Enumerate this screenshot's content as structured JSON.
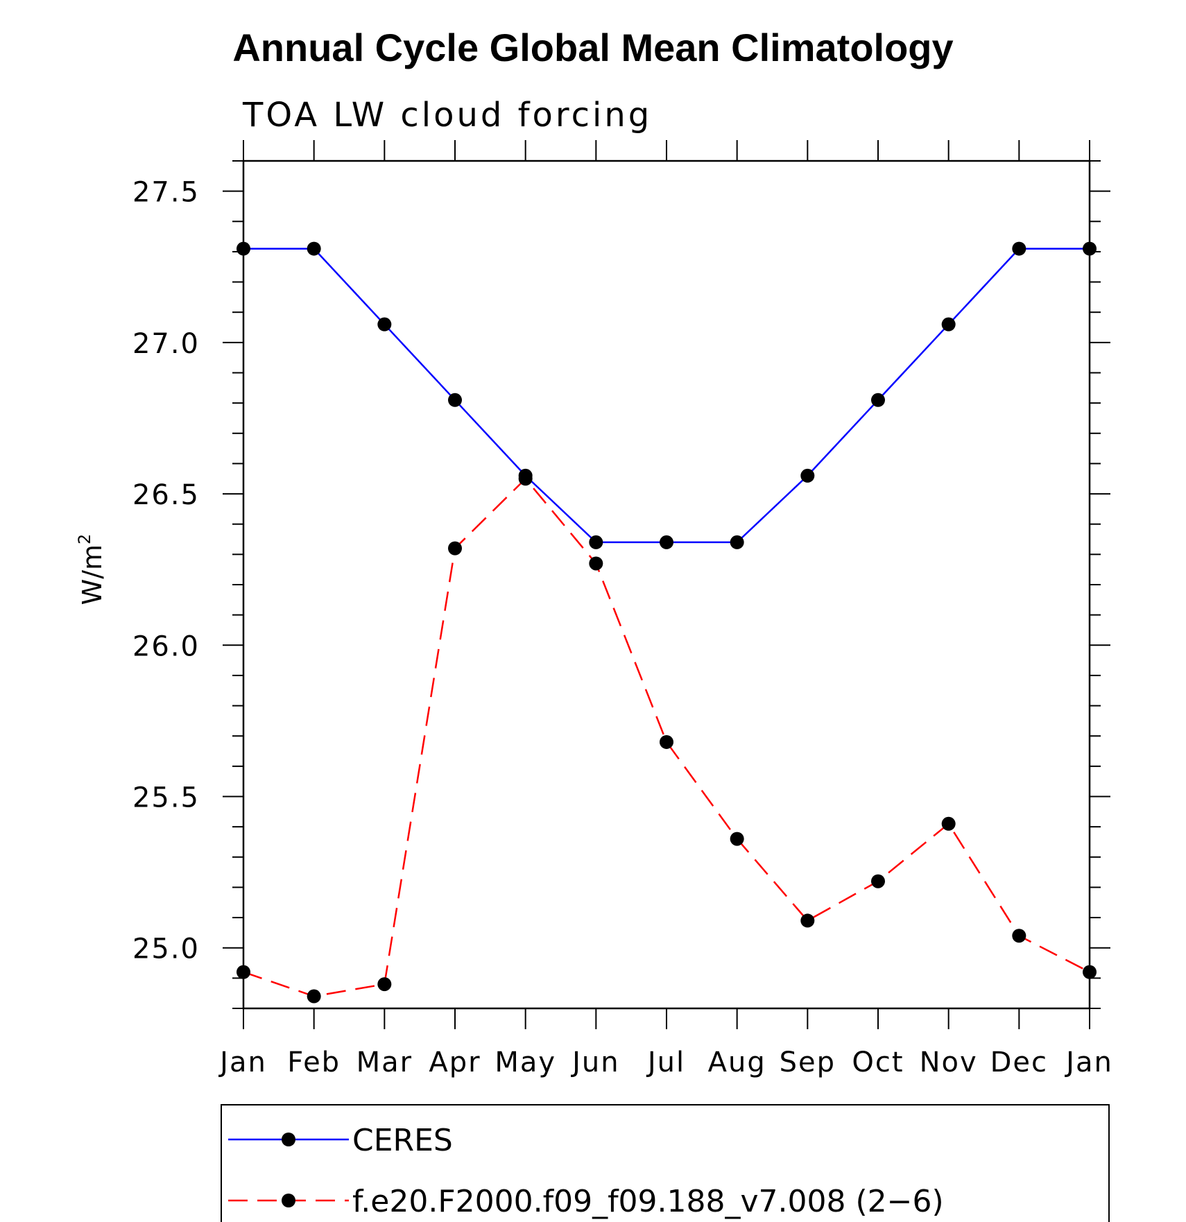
{
  "chart_data": {
    "type": "line",
    "title": "Annual Cycle Global Mean Climatology",
    "subtitle": "TOA LW cloud forcing",
    "xlabel": "",
    "ylabel": "W/m",
    "ylabel_superscript": "2",
    "categories": [
      "Jan",
      "Feb",
      "Mar",
      "Apr",
      "May",
      "Jun",
      "Jul",
      "Aug",
      "Sep",
      "Oct",
      "Nov",
      "Dec",
      "Jan"
    ],
    "ylim": [
      24.8,
      27.6
    ],
    "yticks": [
      25.0,
      25.5,
      26.0,
      26.5,
      27.0,
      27.5
    ],
    "ytick_labels": [
      "25.0",
      "25.5",
      "26.0",
      "26.5",
      "27.0",
      "27.5"
    ],
    "series": [
      {
        "name": "CERES",
        "color": "#0000ff",
        "line_style": "solid",
        "marker": "filled-circle",
        "values": [
          27.31,
          27.31,
          27.06,
          26.81,
          26.56,
          26.34,
          26.34,
          26.34,
          26.56,
          26.81,
          27.06,
          27.31,
          27.31
        ]
      },
      {
        "name": "f.e20.F2000.f09_f09.188_v7.008 (2−6)",
        "color": "#ff0000",
        "line_style": "dashed",
        "marker": "filled-circle",
        "values": [
          24.92,
          24.84,
          24.88,
          26.32,
          26.55,
          26.27,
          25.68,
          25.36,
          25.09,
          25.22,
          25.41,
          25.04,
          24.92
        ]
      }
    ],
    "legend_position": "bottom"
  }
}
